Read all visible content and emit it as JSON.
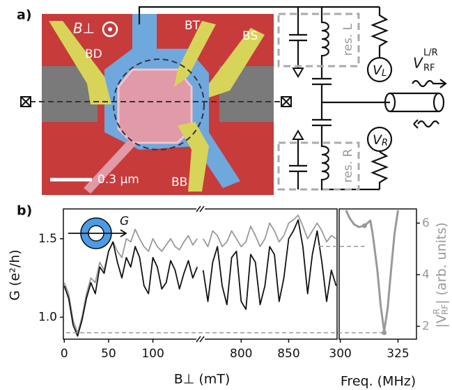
{
  "panel_a": {
    "label": "a)",
    "field": "B⊥",
    "gates": [
      "BT",
      "BS",
      "BD",
      "BB"
    ],
    "scale_bar": "0.3 µm",
    "resonators": [
      "res. L",
      "res. R"
    ],
    "sources": [
      {
        "symbol": "V",
        "sub": "L"
      },
      {
        "symbol": "V",
        "sub": "R"
      }
    ],
    "rf": {
      "symbol": "V",
      "sub": "RF",
      "sup": "L/R"
    }
  },
  "chart_data": [
    {
      "type": "line",
      "panel_label": "b)",
      "inset_label": "G",
      "ylabel": "G (e²/h)",
      "xlabel": "B⊥ (mT)",
      "x": [
        0,
        5,
        10,
        15,
        20,
        25,
        30,
        35,
        40,
        45,
        50,
        55,
        60,
        65,
        70,
        75,
        80,
        85,
        90,
        95,
        100,
        105,
        110,
        115,
        120,
        125,
        130,
        135,
        140,
        145,
        150
      ],
      "xlim": [
        -1,
        153
      ],
      "xticks": [
        0,
        50,
        100
      ],
      "ylim": [
        0.86,
        1.69
      ],
      "yticks": [
        {
          "value": 1,
          "label": "1.0"
        },
        1.5
      ],
      "series": [
        {
          "color": "#999999",
          "values": [
            1.22,
            1.15,
            0.98,
            0.9,
            1.0,
            1.15,
            1.25,
            1.22,
            1.35,
            1.3,
            1.42,
            1.48,
            1.42,
            1.38,
            1.5,
            1.48,
            1.56,
            1.5,
            1.45,
            1.42,
            1.5,
            1.45,
            1.42,
            1.46,
            1.5,
            1.45,
            1.43,
            1.48,
            1.52,
            1.46,
            1.5
          ]
        },
        {
          "color": "#111111",
          "values": [
            1.2,
            1.12,
            0.95,
            0.88,
            0.98,
            1.12,
            1.22,
            1.15,
            1.32,
            1.28,
            1.42,
            1.48,
            1.35,
            1.25,
            1.38,
            1.32,
            1.45,
            1.38,
            1.2,
            1.15,
            1.38,
            1.32,
            1.18,
            1.22,
            1.36,
            1.3,
            1.18,
            1.28,
            1.36,
            1.25,
            1.32
          ]
        }
      ]
    },
    {
      "type": "line",
      "x": [
        760,
        765,
        770,
        775,
        780,
        785,
        790,
        795,
        800,
        805,
        810,
        815,
        820,
        825,
        830,
        835,
        840,
        845,
        850,
        855,
        860,
        865,
        870,
        875,
        880,
        885,
        890,
        895,
        900
      ],
      "xlim": [
        758,
        901
      ],
      "xticks": [
        800,
        850
      ],
      "ylim": [
        0.86,
        1.69
      ],
      "series": [
        {
          "color": "#999999",
          "values": [
            1.5,
            1.45,
            1.55,
            1.52,
            1.45,
            1.48,
            1.55,
            1.5,
            1.45,
            1.48,
            1.58,
            1.52,
            1.45,
            1.5,
            1.6,
            1.55,
            1.48,
            1.52,
            1.6,
            1.62,
            1.65,
            1.58,
            1.5,
            1.55,
            1.6,
            1.55,
            1.48,
            1.52,
            1.5
          ]
        },
        {
          "color": "#111111",
          "values": [
            1.3,
            1.1,
            1.35,
            1.45,
            1.2,
            1.08,
            1.38,
            1.42,
            1.1,
            1.05,
            1.4,
            1.35,
            1.08,
            1.2,
            1.45,
            1.4,
            1.1,
            1.25,
            1.5,
            1.55,
            1.62,
            1.45,
            1.15,
            1.4,
            1.55,
            1.35,
            1.1,
            1.3,
            1.2
          ]
        }
      ]
    },
    {
      "type": "line",
      "xlabel": "Freq. (MHz)",
      "y2label": [
        "|V",
        "R",
        "RF",
        "| (arb. units)"
      ],
      "x": [
        302.5,
        304,
        306,
        308,
        310.5,
        313,
        314,
        316,
        317.5,
        319,
        320.5,
        322,
        323.5,
        325
      ],
      "xlim": [
        299.5,
        333
      ],
      "xticks": [
        300,
        325
      ],
      "y2lim": [
        1.5,
        6.55
      ],
      "y2ticks": [
        2,
        4,
        6
      ],
      "series": [
        {
          "color": "#999999",
          "axis": "y2",
          "values": [
            6.5,
            6.2,
            5.95,
            5.85,
            5.9,
            6.1,
            5.6,
            4.2,
            2.8,
            1.8,
            2.7,
            4.2,
            5.6,
            6.5
          ]
        }
      ],
      "points": [
        {
          "x": 310.5,
          "y": 5.9
        },
        {
          "x": 319,
          "y": 1.75
        }
      ],
      "hlines": [
        5.1,
        1.75
      ]
    }
  ]
}
